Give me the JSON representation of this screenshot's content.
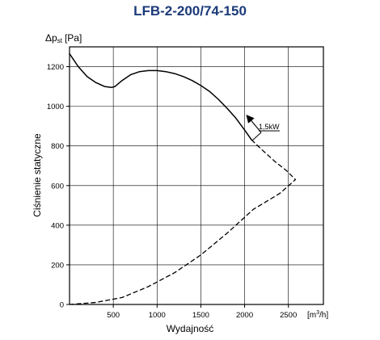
{
  "chart_data": {
    "type": "line",
    "title": "LFB-2-200/74-150",
    "ylabel_symbol": "Δp",
    "ylabel_sub": "st",
    "ylabel_unit": "[Pa]",
    "ylabel": "Ciśnienie statyczne",
    "xlabel": "Wydajność",
    "x_unit_prefix": "[m",
    "x_unit_sup": "3",
    "x_unit_suffix": "/h]",
    "xlim": [
      0,
      2900
    ],
    "ylim": [
      0,
      1300
    ],
    "x_ticks": [
      500,
      1000,
      1500,
      2000,
      2500
    ],
    "y_ticks": [
      0,
      200,
      400,
      600,
      800,
      1000,
      1200
    ],
    "grid": true,
    "annotation": {
      "label": "1,5kW",
      "color": "#c0392b"
    },
    "series": [
      {
        "style": "solid",
        "x": [
          0,
          100,
          200,
          300,
          400,
          480,
          520,
          600,
          700,
          800,
          900,
          1000,
          1100,
          1200,
          1300,
          1400,
          1500,
          1600,
          1700,
          1800,
          1900,
          2000,
          2080
        ],
        "y": [
          1265,
          1200,
          1150,
          1120,
          1100,
          1095,
          1100,
          1130,
          1160,
          1175,
          1180,
          1180,
          1175,
          1165,
          1150,
          1130,
          1105,
          1075,
          1035,
          990,
          940,
          880,
          830
        ]
      },
      {
        "style": "dashed",
        "x": [
          2080,
          2200,
          2350,
          2480,
          2580
        ],
        "y": [
          830,
          780,
          720,
          675,
          630
        ]
      },
      {
        "style": "dashed",
        "x": [
          0,
          300,
          600,
          900,
          1200,
          1500,
          1800,
          2100,
          2400,
          2580
        ],
        "y": [
          0,
          10,
          35,
          90,
          160,
          250,
          360,
          480,
          560,
          630
        ]
      }
    ]
  }
}
